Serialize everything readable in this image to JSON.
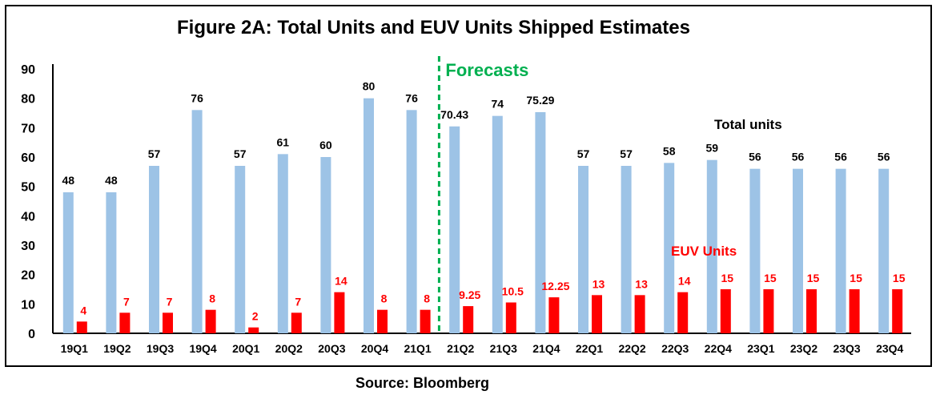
{
  "colors": {
    "total": "#9dc3e6",
    "euv": "#ff0000",
    "forecast": "#00b050"
  },
  "source": "Source: Bloomberg",
  "chart_data": {
    "type": "bar",
    "title": "Figure 2A: Total Units and EUV Units Shipped Estimates",
    "categories": [
      "19Q1",
      "19Q2",
      "19Q3",
      "19Q4",
      "20Q1",
      "20Q2",
      "20Q3",
      "20Q4",
      "21Q1",
      "21Q2",
      "21Q3",
      "21Q4",
      "22Q1",
      "22Q2",
      "22Q3",
      "22Q4",
      "23Q1",
      "23Q2",
      "23Q3",
      "23Q4"
    ],
    "series": [
      {
        "name": "Total units",
        "values": [
          48,
          48,
          57,
          76,
          57,
          61,
          60,
          80,
          76,
          70.43,
          74,
          75.29,
          57,
          57,
          58,
          59,
          56,
          56,
          56,
          56
        ],
        "labels": [
          "48",
          "48",
          "57",
          "76",
          "57",
          "61",
          "60",
          "80",
          "76",
          "70.43",
          "74",
          "75.29",
          "57",
          "57",
          "58",
          "59",
          "56",
          "56",
          "56",
          "56"
        ]
      },
      {
        "name": "EUV Units",
        "values": [
          4,
          7,
          7,
          8,
          2,
          7,
          14,
          8,
          8,
          9.25,
          10.5,
          12.25,
          13,
          13,
          14,
          15,
          15,
          15,
          15,
          15
        ],
        "labels": [
          "4",
          "7",
          "7",
          "8",
          "2",
          "7",
          "14",
          "8",
          "8",
          "9.25",
          "10.5",
          "12.25",
          "13",
          "13",
          "14",
          "15",
          "15",
          "15",
          "15",
          "15"
        ]
      }
    ],
    "yticks": [
      "0",
      "10",
      "20",
      "30",
      "40",
      "50",
      "60",
      "70",
      "80",
      "90"
    ],
    "ylim": [
      0,
      90
    ],
    "forecast_label": "Forecasts",
    "forecast_after": "21Q1",
    "xlabel": "",
    "ylabel": ""
  }
}
